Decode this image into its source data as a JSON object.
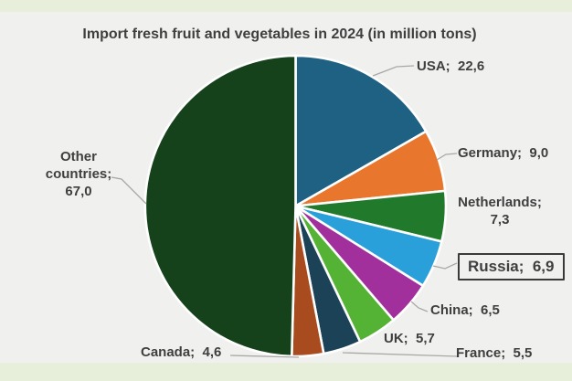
{
  "theme": {
    "strip_bg": "#e7eeda",
    "panel_bg": "#f0f0ee",
    "text_color": "#3f3f3f",
    "leader_color": "#a8a8a8",
    "highlight_box_border": "#3a3a3a",
    "slice_separator": "#ffffff"
  },
  "chart_data": {
    "type": "pie",
    "title": "Import fresh fruit and vegetables in 2024 (in million tons)",
    "units": "million tons",
    "decimal_style": "comma",
    "start_angle_deg": 0,
    "direction": "clockwise",
    "total": 135.1,
    "legend_position": "outside-callouts",
    "slices": [
      {
        "label": "USA",
        "value": 22.6,
        "display": "USA;  22,6",
        "color": "#1e6183",
        "highlighted": false
      },
      {
        "label": "Germany",
        "value": 9.0,
        "display": "Germany;  9,0",
        "color": "#e8762c",
        "highlighted": false
      },
      {
        "label": "Netherlands",
        "value": 7.3,
        "display": "Netherlands;\n7,3",
        "color": "#217a2b",
        "highlighted": false
      },
      {
        "label": "Russia",
        "value": 6.9,
        "display": "Russia;  6,9",
        "color": "#29a0d9",
        "highlighted": true
      },
      {
        "label": "China",
        "value": 6.5,
        "display": "China;  6,5",
        "color": "#a2309c",
        "highlighted": false
      },
      {
        "label": "UK",
        "value": 5.7,
        "display": "UK;  5,7",
        "color": "#54b334",
        "highlighted": false
      },
      {
        "label": "France",
        "value": 5.5,
        "display": "France;  5,5",
        "color": "#1c4257",
        "highlighted": false
      },
      {
        "label": "Canada",
        "value": 4.6,
        "display": "Canada;  4,6",
        "color": "#a84b1e",
        "highlighted": false
      },
      {
        "label": "Other countries",
        "value": 67.0,
        "display": "Other\ncountries;\n67,0",
        "color": "#15421a",
        "highlighted": false
      }
    ]
  }
}
